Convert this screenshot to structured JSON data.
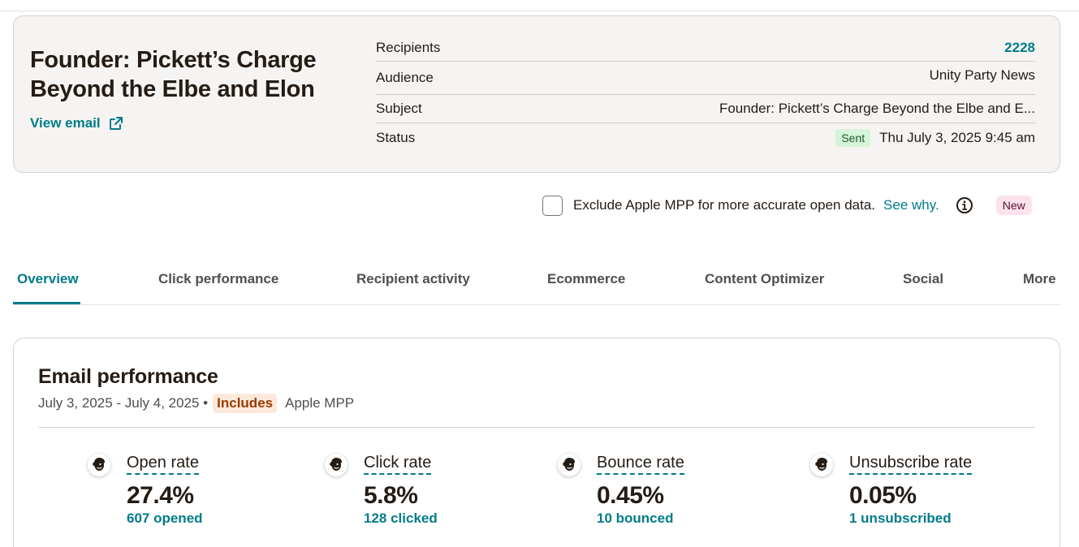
{
  "campaign": {
    "title": "Founder: Pickett’s Charge Beyond the Elbe and Elon",
    "view_email_label": "View email",
    "meta": {
      "recipients_label": "Recipients",
      "recipients_value": "2228",
      "audience_label": "Audience",
      "audience_value": "Unity Party News",
      "subject_label": "Subject",
      "subject_value": "Founder: Pickett’s Charge Beyond the Elbe and E...",
      "status_label": "Status",
      "status_badge": "Sent",
      "status_date": "Thu July 3, 2025 9:45 am"
    }
  },
  "mpp": {
    "checked": false,
    "text": "Exclude Apple MPP for more accurate open data.",
    "link": "See why.",
    "new_badge": "New"
  },
  "tabs": [
    {
      "label": "Overview",
      "active": true
    },
    {
      "label": "Click performance"
    },
    {
      "label": "Recipient activity"
    },
    {
      "label": "Ecommerce"
    },
    {
      "label": "Content Optimizer"
    },
    {
      "label": "Social"
    },
    {
      "label": "More"
    }
  ],
  "performance": {
    "title": "Email performance",
    "date_range": "July 3, 2025 - July 4, 2025 •",
    "includes_badge": "Includes",
    "includes_text": "Apple MPP",
    "stats": [
      {
        "label": "Open rate",
        "value": "27.4%",
        "sub": "607 opened",
        "icon": "mailchimp-freddie-icon"
      },
      {
        "label": "Click rate",
        "value": "5.8%",
        "sub": "128 clicked",
        "icon": "mailchimp-freddie-icon"
      },
      {
        "label": "Bounce rate",
        "value": "0.45%",
        "sub": "10 bounced",
        "icon": "mailchimp-freddie-icon"
      },
      {
        "label": "Unsubscribe rate",
        "value": "0.05%",
        "sub": "1 unsubscribed",
        "icon": "mailchimp-freddie-icon"
      }
    ]
  },
  "colors": {
    "accent": "#007c89",
    "card_bg": "#f5f4f2",
    "sent_badge_bg": "#d5f4d9",
    "new_badge_bg": "#fbe2ec",
    "includes_badge_bg": "#fde9dc"
  }
}
